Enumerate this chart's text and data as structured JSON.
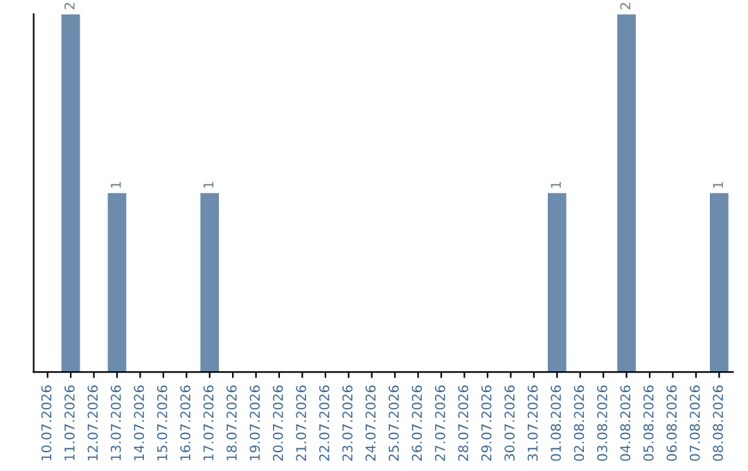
{
  "chart_data": {
    "type": "bar",
    "categories": [
      "10.07.2026",
      "11.07.2026",
      "12.07.2026",
      "13.07.2026",
      "14.07.2026",
      "15.07.2026",
      "16.07.2026",
      "17.07.2026",
      "18.07.2026",
      "19.07.2026",
      "20.07.2026",
      "21.07.2026",
      "22.07.2026",
      "23.07.2026",
      "24.07.2026",
      "25.07.2026",
      "26.07.2026",
      "27.07.2026",
      "28.07.2026",
      "29.07.2026",
      "30.07.2026",
      "31.07.2026",
      "01.08.2026",
      "02.08.2026",
      "03.08.2026",
      "04.08.2026",
      "05.08.2026",
      "06.08.2026",
      "07.08.2026",
      "08.08.2026"
    ],
    "values": [
      0,
      2,
      0,
      1,
      0,
      0,
      0,
      1,
      0,
      0,
      0,
      0,
      0,
      0,
      0,
      0,
      0,
      0,
      0,
      0,
      0,
      0,
      1,
      0,
      0,
      2,
      0,
      0,
      0,
      1
    ],
    "value_labels": [
      null,
      "2",
      null,
      "1",
      null,
      null,
      null,
      "1",
      null,
      null,
      null,
      null,
      null,
      null,
      null,
      null,
      null,
      null,
      null,
      null,
      null,
      null,
      "1",
      null,
      null,
      "2",
      null,
      null,
      null,
      "1"
    ],
    "color": "#6b8cac",
    "tick_labels": "x",
    "grid": false
  }
}
